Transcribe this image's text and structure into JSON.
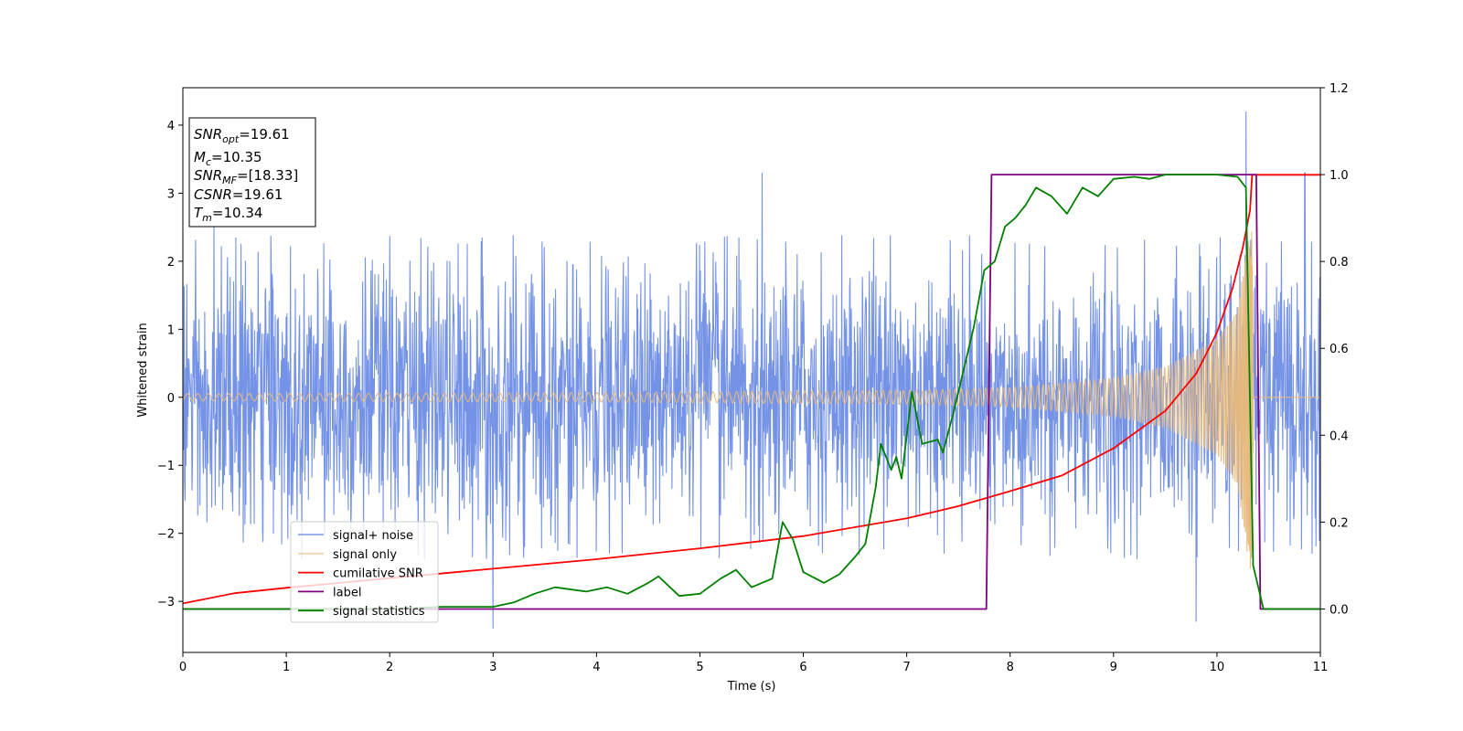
{
  "chart_data": {
    "type": "line",
    "xlabel": "Time (s)",
    "ylabel": "Whitened strain",
    "xlim": [
      0,
      11
    ],
    "ylim": [
      -3.75,
      4.55
    ],
    "y2lim": [
      -0.1,
      1.2
    ],
    "x_ticks": [
      0,
      1,
      2,
      3,
      4,
      5,
      6,
      7,
      8,
      9,
      10,
      11
    ],
    "y_ticks": [
      -3,
      -2,
      -1,
      0,
      1,
      2,
      3,
      4
    ],
    "y2_ticks": [
      "0.0",
      "0.2",
      "0.4",
      "0.6",
      "0.8",
      "1.0",
      "1.2"
    ],
    "grid": false,
    "legend_position": "lower-left",
    "info_box": [
      {
        "sym": "SNR",
        "sub": "opt",
        "val": "=19.61"
      },
      {
        "sym": "M",
        "sub": "c",
        "val": "=10.35"
      },
      {
        "sym": "SNR",
        "sub": "MF",
        "val": "=[18.33]"
      },
      {
        "sym": "CSNR",
        "sub": "",
        "val": "=19.61"
      },
      {
        "sym": "T",
        "sub": "m",
        "val": "=10.34"
      }
    ],
    "series": [
      {
        "name": "signal+ noise",
        "color": "#7593e6",
        "axis": "left",
        "envelope": {
          "typical_peak": 2.4,
          "extremes": [
            [
              0.3,
              2.6
            ],
            [
              3.0,
              -3.4
            ],
            [
              5.6,
              3.3
            ],
            [
              9.8,
              -3.3
            ],
            [
              10.28,
              4.2
            ],
            [
              10.85,
              3.3
            ]
          ]
        }
      },
      {
        "name": "signal only",
        "color": "#e8b97a",
        "axis": "left",
        "chirp_amplitude": [
          [
            0,
            0.05
          ],
          [
            4,
            0.07
          ],
          [
            7,
            0.1
          ],
          [
            8,
            0.14
          ],
          [
            9,
            0.28
          ],
          [
            9.5,
            0.45
          ],
          [
            10,
            0.85
          ],
          [
            10.2,
            1.3
          ],
          [
            10.3,
            2.4
          ],
          [
            10.34,
            2.6
          ],
          [
            10.36,
            0
          ]
        ]
      },
      {
        "name": "cumilative SNR",
        "color": "#ff0000",
        "axis": "left",
        "points": [
          [
            0,
            -3.03
          ],
          [
            0.5,
            -2.88
          ],
          [
            1,
            -2.8
          ],
          [
            2,
            -2.66
          ],
          [
            3,
            -2.52
          ],
          [
            4,
            -2.38
          ],
          [
            5,
            -2.22
          ],
          [
            6,
            -2.04
          ],
          [
            7,
            -1.78
          ],
          [
            7.5,
            -1.6
          ],
          [
            8,
            -1.38
          ],
          [
            8.5,
            -1.15
          ],
          [
            9,
            -0.75
          ],
          [
            9.5,
            -0.2
          ],
          [
            9.8,
            0.35
          ],
          [
            10,
            0.95
          ],
          [
            10.15,
            1.6
          ],
          [
            10.25,
            2.2
          ],
          [
            10.32,
            2.75
          ],
          [
            10.34,
            3.27
          ],
          [
            11,
            3.27
          ]
        ]
      },
      {
        "name": "label",
        "color": "#800080",
        "axis": "right",
        "points": [
          [
            0,
            0
          ],
          [
            7.77,
            0
          ],
          [
            7.82,
            1
          ],
          [
            10.38,
            1
          ],
          [
            10.42,
            0
          ],
          [
            11,
            0
          ]
        ]
      },
      {
        "name": "signal statistics",
        "color": "#008000",
        "axis": "right",
        "points": [
          [
            0,
            0.0
          ],
          [
            1.0,
            0.0
          ],
          [
            2.0,
            0.0
          ],
          [
            2.5,
            0.005
          ],
          [
            3.0,
            0.005
          ],
          [
            3.2,
            0.015
          ],
          [
            3.4,
            0.035
          ],
          [
            3.6,
            0.05
          ],
          [
            3.9,
            0.04
          ],
          [
            4.1,
            0.05
          ],
          [
            4.3,
            0.035
          ],
          [
            4.5,
            0.06
          ],
          [
            4.6,
            0.075
          ],
          [
            4.8,
            0.03
          ],
          [
            5.0,
            0.035
          ],
          [
            5.2,
            0.07
          ],
          [
            5.35,
            0.09
          ],
          [
            5.5,
            0.05
          ],
          [
            5.7,
            0.07
          ],
          [
            5.8,
            0.2
          ],
          [
            5.9,
            0.16
          ],
          [
            6.0,
            0.085
          ],
          [
            6.2,
            0.06
          ],
          [
            6.35,
            0.08
          ],
          [
            6.5,
            0.12
          ],
          [
            6.6,
            0.15
          ],
          [
            6.7,
            0.28
          ],
          [
            6.75,
            0.38
          ],
          [
            6.85,
            0.32
          ],
          [
            6.9,
            0.35
          ],
          [
            6.95,
            0.3
          ],
          [
            7.05,
            0.5
          ],
          [
            7.15,
            0.38
          ],
          [
            7.3,
            0.39
          ],
          [
            7.35,
            0.36
          ],
          [
            7.45,
            0.45
          ],
          [
            7.55,
            0.55
          ],
          [
            7.65,
            0.65
          ],
          [
            7.75,
            0.78
          ],
          [
            7.85,
            0.8
          ],
          [
            7.95,
            0.88
          ],
          [
            8.05,
            0.9
          ],
          [
            8.15,
            0.93
          ],
          [
            8.25,
            0.97
          ],
          [
            8.4,
            0.95
          ],
          [
            8.55,
            0.91
          ],
          [
            8.7,
            0.97
          ],
          [
            8.85,
            0.95
          ],
          [
            9.0,
            0.99
          ],
          [
            9.2,
            0.995
          ],
          [
            9.35,
            0.99
          ],
          [
            9.5,
            1.0
          ],
          [
            10.0,
            1.0
          ],
          [
            10.2,
            0.995
          ],
          [
            10.28,
            0.97
          ],
          [
            10.35,
            0.1
          ],
          [
            10.45,
            0.0
          ],
          [
            11,
            0.0
          ]
        ]
      }
    ]
  }
}
